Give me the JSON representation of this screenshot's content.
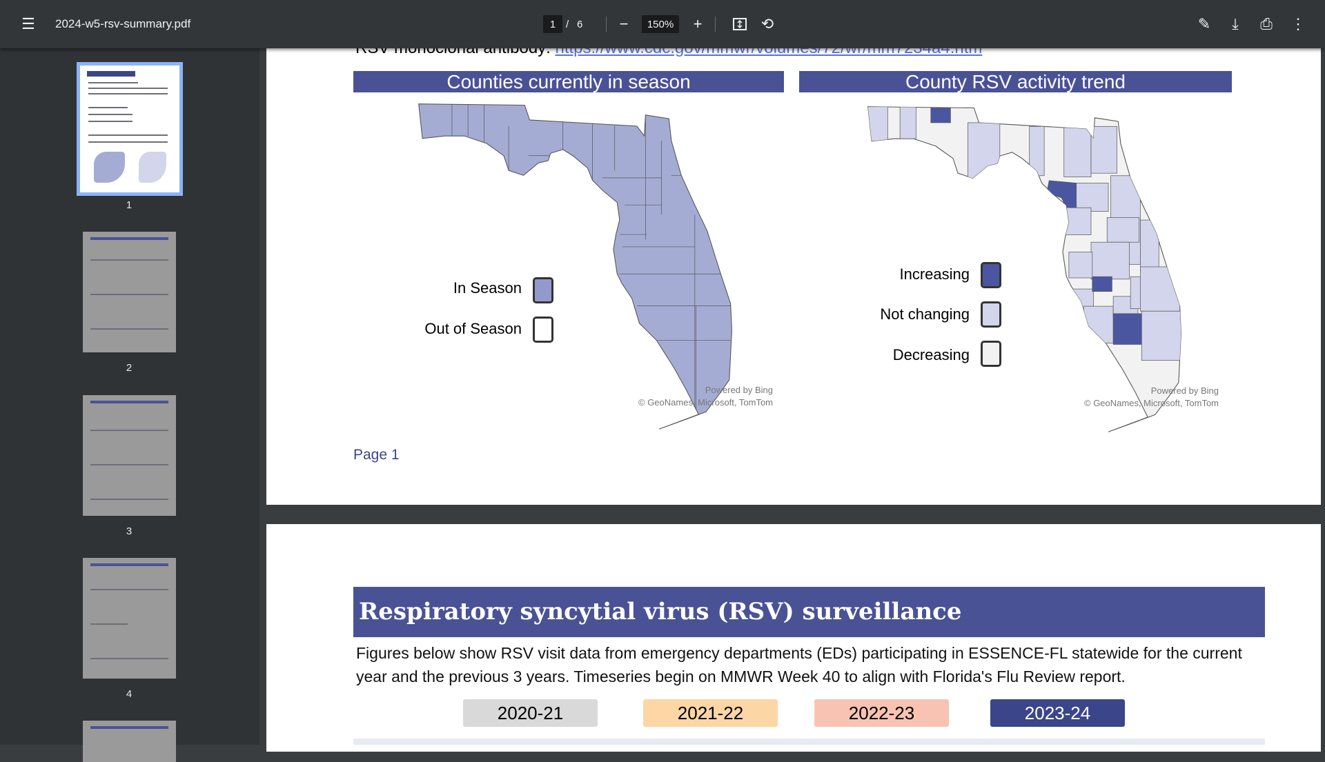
{
  "toolbar": {
    "title": "2024-w5-rsv-summary.pdf",
    "current_page": "1",
    "separator": "/",
    "total_pages": "6",
    "zoom": "150%",
    "icons": [
      "menu-icon",
      "zoom-out-icon",
      "zoom-in-icon",
      "fit-page-icon",
      "rotate-icon",
      "pencil-icon",
      "download-icon",
      "print-icon",
      "more-vert-icon"
    ]
  },
  "sidebar": {
    "thumbnails": [
      {
        "label": "1",
        "selected": true
      },
      {
        "label": "2"
      },
      {
        "label": "3"
      },
      {
        "label": "4"
      }
    ]
  },
  "page1": {
    "link_prefix": "RSV monoclonal antibody: ",
    "link_text": "https://www.cdc.gov/mmwr/volumes/72/wr/mm7234a4.htm",
    "left_map": {
      "title": "Counties currently in season",
      "legend": [
        {
          "label": "In Season",
          "color": "#a5acd4"
        },
        {
          "label": "Out of Season",
          "color": "#ffffff"
        }
      ],
      "credit1": "Powered by Bing",
      "credit2": "© GeoNames, Microsoft, TomTom"
    },
    "right_map": {
      "title": "County RSV activity trend",
      "legend": [
        {
          "label": "Increasing",
          "color": "#4b56a0"
        },
        {
          "label": "Not changing",
          "color": "#d2d5eb"
        },
        {
          "label": "Decreasing",
          "color": "#f2f2f2"
        }
      ],
      "credit1": "Powered by Bing",
      "credit2": "© GeoNames, Microsoft, TomTom"
    },
    "page_label": "Page 1"
  },
  "page2": {
    "title": "Respiratory syncytial virus (RSV) surveillance",
    "paragraph": "Figures below show RSV visit data from emergency departments (EDs) participating in ESSENCE-FL statewide for the current year and the previous 3 years. Timeseries begin on MMWR Week 40 to align with Florida's Flu Review report.",
    "seasons": [
      {
        "label": "2020-21",
        "color": "#d9d9d9"
      },
      {
        "label": "2021-22",
        "color": "#fdd6a5"
      },
      {
        "label": "2022-23",
        "color": "#f8c3b3"
      },
      {
        "label": "2023-24",
        "color": "#3b4589"
      }
    ]
  }
}
